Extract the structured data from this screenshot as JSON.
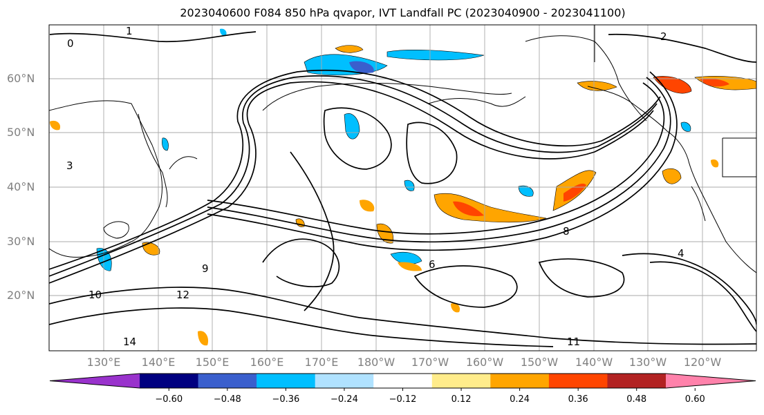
{
  "title": "2023040600 F084 850 hPa qvapor, IVT Landfall PC (2023040900 - 2023041100)",
  "lat_labels": [
    "60°N",
    "50°N",
    "40°N",
    "30°N",
    "20°N"
  ],
  "lon_labels": [
    "130°E",
    "140°E",
    "150°E",
    "160°E",
    "170°E",
    "180°W",
    "170°W",
    "160°W",
    "150°W",
    "140°W",
    "130°W",
    "120°W"
  ],
  "contour_labels": [
    "0",
    "1",
    "2",
    "3",
    "4",
    "6",
    "8",
    "9",
    "10",
    "11",
    "12",
    "14"
  ],
  "colorbar": {
    "tick_labels": [
      "−0.60",
      "−0.48",
      "−0.36",
      "−0.24",
      "−0.12",
      "0.12",
      "0.24",
      "0.36",
      "0.48",
      "0.60"
    ],
    "colors": [
      "#9932cc",
      "#000080",
      "#3a5fcd",
      "#00bfff",
      "#b0e2ff",
      "#ffffff",
      "#ffec8b",
      "#ffa500",
      "#ff4500",
      "#b22222",
      "#ff82ab"
    ]
  }
}
